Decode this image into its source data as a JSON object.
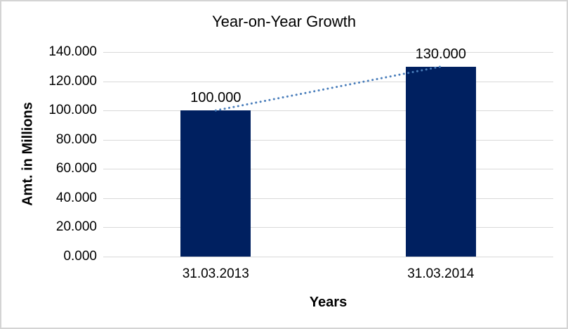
{
  "chart_data": {
    "type": "bar",
    "title": "Year-on-Year Growth",
    "categories": [
      "31.03.2013",
      "31.03.2014"
    ],
    "values": [
      100.0,
      130.0
    ],
    "data_labels": [
      "100.000",
      "130.000"
    ],
    "xlabel": "Years",
    "ylabel": "Amt. in Millions",
    "ylim": [
      0,
      140
    ],
    "ytick_step": 20,
    "ytick_labels": [
      "0.000",
      "20.000",
      "40.000",
      "60.000",
      "80.000",
      "100.000",
      "120.000",
      "140.000"
    ],
    "grid": true,
    "legend_position": "none",
    "bar_color": "#002060",
    "gridline_color": "#d9d9d9",
    "trendline": {
      "style": "dotted",
      "color": "#4a7ebb",
      "from_value": 100.0,
      "to_value": 130.0
    }
  }
}
